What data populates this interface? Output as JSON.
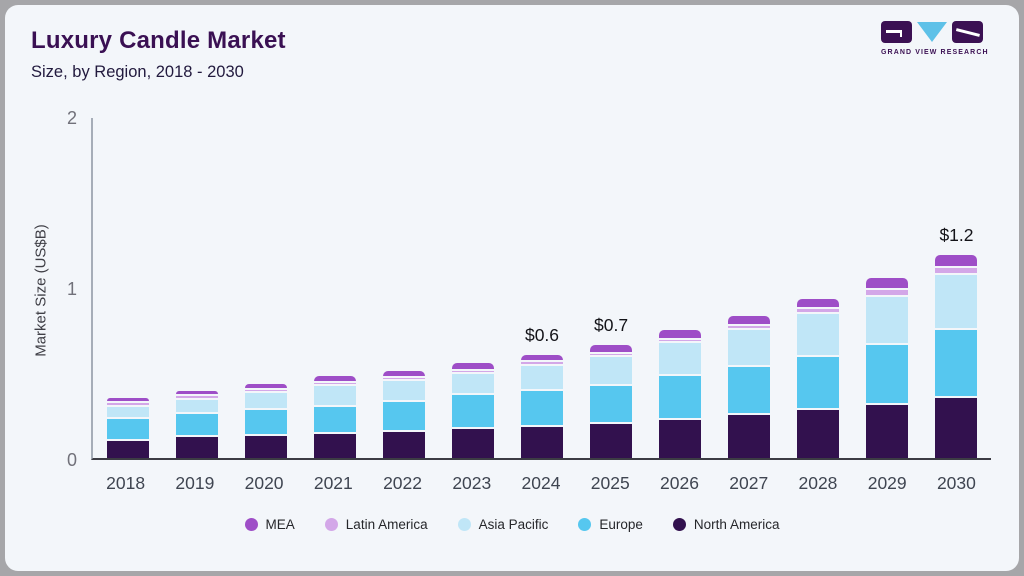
{
  "header": {
    "title": "Luxury Candle Market",
    "subtitle": "Size, by Region, 2018 - 2030"
  },
  "logo": {
    "name": "grand-view-research",
    "text": "GRAND VIEW RESEARCH",
    "square_color": "#3b1053",
    "triangle_color": "#5ec1e8"
  },
  "chart_data": {
    "type": "bar",
    "stacked": true,
    "title": "Luxury Candle Market",
    "subtitle": "Size, by Region, 2018 - 2030",
    "xlabel": "",
    "ylabel": "Market Size (US$B)",
    "ylim": [
      0,
      2
    ],
    "yticks": [
      0,
      1,
      2
    ],
    "grid": false,
    "legend_position": "bottom",
    "categories": [
      "2018",
      "2019",
      "2020",
      "2021",
      "2022",
      "2023",
      "2024",
      "2025",
      "2026",
      "2027",
      "2028",
      "2029",
      "2030"
    ],
    "series": [
      {
        "name": "North America",
        "color": "#32114e",
        "values": [
          0.1,
          0.12,
          0.13,
          0.14,
          0.15,
          0.17,
          0.18,
          0.2,
          0.22,
          0.25,
          0.28,
          0.31,
          0.35
        ]
      },
      {
        "name": "Europe",
        "color": "#56c7ef",
        "values": [
          0.13,
          0.14,
          0.15,
          0.16,
          0.18,
          0.2,
          0.21,
          0.22,
          0.26,
          0.28,
          0.31,
          0.35,
          0.4
        ]
      },
      {
        "name": "Asia Pacific",
        "color": "#c0e6f7",
        "values": [
          0.07,
          0.08,
          0.1,
          0.12,
          0.12,
          0.12,
          0.15,
          0.17,
          0.19,
          0.22,
          0.25,
          0.28,
          0.32
        ]
      },
      {
        "name": "Latin America",
        "color": "#d3a7e8",
        "values": [
          0.01,
          0.01,
          0.01,
          0.01,
          0.015,
          0.015,
          0.02,
          0.02,
          0.02,
          0.02,
          0.03,
          0.04,
          0.04
        ]
      },
      {
        "name": "MEA",
        "color": "#9e4ec7",
        "values": [
          0.03,
          0.03,
          0.035,
          0.04,
          0.04,
          0.045,
          0.045,
          0.05,
          0.06,
          0.06,
          0.06,
          0.07,
          0.08
        ]
      }
    ],
    "totals": [
      0.34,
      0.38,
      0.425,
      0.47,
      0.505,
      0.55,
      0.6,
      0.66,
      0.75,
      0.83,
      0.93,
      1.05,
      1.19
    ],
    "annotations": [
      {
        "category": "2024",
        "label": "$0.6"
      },
      {
        "category": "2025",
        "label": "$0.7"
      },
      {
        "category": "2030",
        "label": "$1.2"
      }
    ],
    "legend": [
      "MEA",
      "Latin America",
      "Asia Pacific",
      "Europe",
      "North America"
    ]
  }
}
